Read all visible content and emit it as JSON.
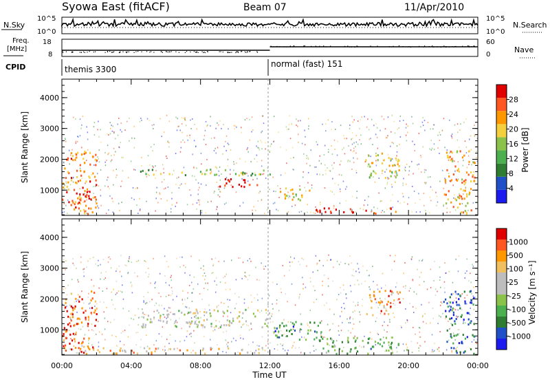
{
  "header": {
    "title": "Syowa East (fitACF)",
    "beam": "Beam 07",
    "date": "11/Apr/2010"
  },
  "top_panels": {
    "nsky_label": "N.Sky",
    "nsky_ticks": [
      "10^5",
      "10^0"
    ],
    "nsearch_label": "N.Search",
    "nsearch_ticks": [
      "10^5",
      "10^0"
    ],
    "freq_label_line1": "Freq.",
    "freq_label_line2": "[MHz]",
    "freq_ticks": [
      "18",
      "8"
    ],
    "nave_label": "Nave",
    "nave_ticks": [
      "60",
      "0"
    ],
    "cpid_label": "CPID",
    "cpid_segments": [
      {
        "name": "themis 3300",
        "start_hour": 0,
        "end_hour": 12
      },
      {
        "name": "normal (fast) 151",
        "start_hour": 12,
        "end_hour": 24
      }
    ]
  },
  "colors": {
    "power_scale": [
      "#1b1bf0",
      "#2050c8",
      "#2e7d32",
      "#4caf50",
      "#8bc34a",
      "#f4d03f",
      "#ff9800",
      "#ff5722",
      "#e00000"
    ],
    "velocity_scale": [
      "#e00000",
      "#ff5722",
      "#ff9800",
      "#f0c060",
      "#bdbdbd",
      "#bdbdbd",
      "#8bc34a",
      "#4caf50",
      "#2e7d32",
      "#2050c8",
      "#1b1bf0"
    ]
  },
  "chart_data": [
    {
      "type": "heatmap",
      "name": "power-panel",
      "x": {
        "label": "Time UT",
        "range_hours": [
          0,
          24
        ],
        "tick_labels": [
          "00:00",
          "04:00",
          "08:00",
          "12:00",
          "16:00",
          "20:00",
          "00:00"
        ]
      },
      "y": {
        "label": "Slant Range [km]",
        "range": [
          180,
          4600
        ],
        "tick_labels": [
          "1000",
          "2000",
          "3000",
          "4000"
        ]
      },
      "colorbar": {
        "label": "Power [dB]",
        "range": [
          0,
          30
        ],
        "tick_labels": [
          "4",
          "8",
          "12",
          "16",
          "20",
          "24",
          "28"
        ]
      },
      "regions": [
        {
          "t0": 0.0,
          "t1": 2.0,
          "r0": 250,
          "r1": 2300,
          "level": 0.75
        },
        {
          "t0": 0.2,
          "t1": 2.0,
          "r0": 600,
          "r1": 1000,
          "level": 0.95
        },
        {
          "t0": 4.5,
          "t1": 12.0,
          "r0": 1500,
          "r1": 1700,
          "level": 0.45
        },
        {
          "t0": 9.0,
          "t1": 11.5,
          "r0": 1100,
          "r1": 1400,
          "level": 0.95
        },
        {
          "t0": 12.5,
          "t1": 14.5,
          "r0": 700,
          "r1": 1100,
          "level": 0.6
        },
        {
          "t0": 14.5,
          "t1": 19.5,
          "r0": 250,
          "r1": 450,
          "level": 0.9
        },
        {
          "t0": 17.5,
          "t1": 19.5,
          "r0": 1400,
          "r1": 2300,
          "level": 0.55
        },
        {
          "t0": 22.0,
          "t1": 23.8,
          "r0": 250,
          "r1": 2300,
          "level": 0.7
        }
      ]
    },
    {
      "type": "heatmap",
      "name": "velocity-panel",
      "x": {
        "label": "Time UT",
        "range_hours": [
          0,
          24
        ],
        "tick_labels": [
          "00:00",
          "04:00",
          "08:00",
          "12:00",
          "16:00",
          "20:00",
          "00:00"
        ]
      },
      "y": {
        "label": "Slant Range [km]",
        "range": [
          180,
          4600
        ],
        "tick_labels": [
          "1000",
          "2000",
          "3000",
          "4000"
        ]
      },
      "colorbar": {
        "label": "Velocity [m s⁻¹]",
        "range": [
          -1200,
          1200
        ],
        "tick_labels": [
          "1000",
          "500",
          "100",
          "25",
          "-25",
          "-100",
          "-500",
          "-1000"
        ]
      },
      "regions": [
        {
          "t0": 0.0,
          "t1": 2.0,
          "r0": 250,
          "r1": 2300,
          "level": 0.15
        },
        {
          "t0": 1.0,
          "t1": 12.0,
          "r0": 250,
          "r1": 450,
          "level": 0.3
        },
        {
          "t0": 4.5,
          "t1": 12.0,
          "r0": 1100,
          "r1": 1700,
          "level": 0.48
        },
        {
          "t0": 12.0,
          "t1": 15.0,
          "r0": 700,
          "r1": 1300,
          "level": 0.75
        },
        {
          "t0": 14.5,
          "t1": 20.0,
          "r0": 250,
          "r1": 800,
          "level": 0.65
        },
        {
          "t0": 17.5,
          "t1": 19.5,
          "r0": 1500,
          "r1": 2300,
          "level": 0.2
        },
        {
          "t0": 22.0,
          "t1": 23.8,
          "r0": 250,
          "r1": 2300,
          "level": 0.8
        }
      ]
    }
  ]
}
